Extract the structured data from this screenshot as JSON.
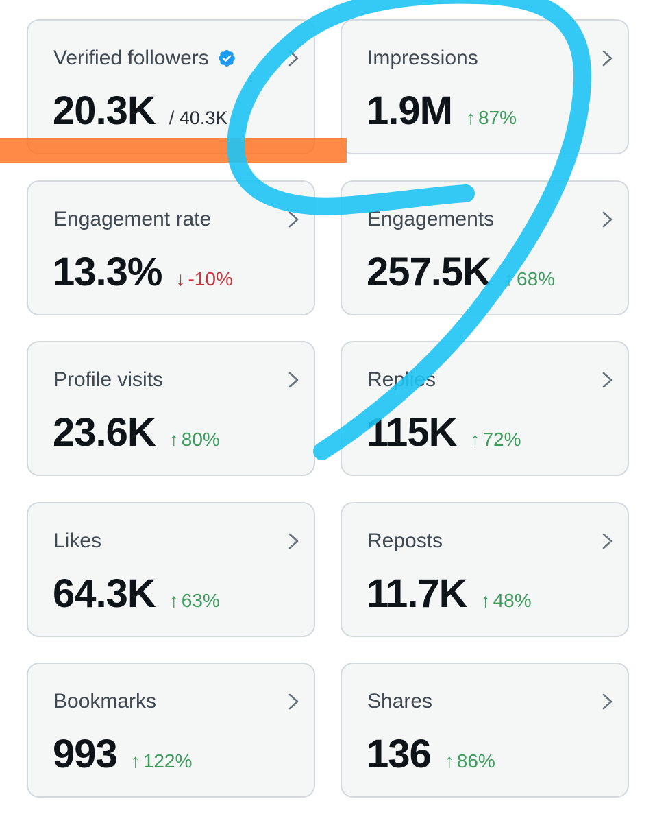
{
  "colors": {
    "up": "#3e9c5f",
    "down": "#c9363e",
    "verified": "#1d9bf0",
    "card_bg": "#f5f6f6",
    "card_border": "#d4d9dd",
    "highlight_orange": "#ff6f1f",
    "highlight_blue": "#1ec4f4"
  },
  "metrics": [
    {
      "title": "Verified followers",
      "icon": "verified-badge-icon",
      "value": "20.3K",
      "secondary": "/ 40.3K"
    },
    {
      "title": "Impressions",
      "value": "1.9M",
      "arrow": "↑",
      "delta": "87%",
      "trend": "up"
    },
    {
      "title": "Engagement rate",
      "value": "13.3%",
      "arrow": "↓",
      "delta": "-10%",
      "trend": "down"
    },
    {
      "title": "Engagements",
      "value": "257.5K",
      "arrow": "↑",
      "delta": "68%",
      "trend": "up"
    },
    {
      "title": "Profile visits",
      "value": "23.6K",
      "arrow": "↑",
      "delta": "80%",
      "trend": "up"
    },
    {
      "title": "Replies",
      "value": "115K",
      "arrow": "↑",
      "delta": "72%",
      "trend": "up"
    },
    {
      "title": "Likes",
      "value": "64.3K",
      "arrow": "↑",
      "delta": "63%",
      "trend": "up"
    },
    {
      "title": "Reposts",
      "value": "11.7K",
      "arrow": "↑",
      "delta": "48%",
      "trend": "up"
    },
    {
      "title": "Bookmarks",
      "value": "993",
      "arrow": "↑",
      "delta": "122%",
      "trend": "up"
    },
    {
      "title": "Shares",
      "value": "136",
      "arrow": "↑",
      "delta": "86%",
      "trend": "up"
    }
  ]
}
